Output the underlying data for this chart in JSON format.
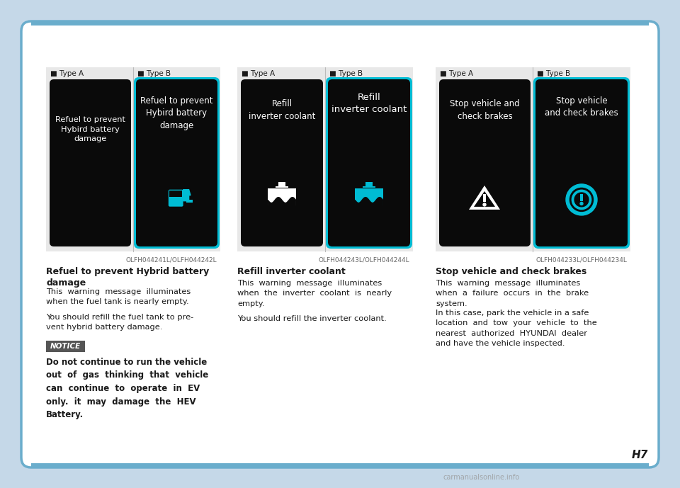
{
  "bg_color": "#c5d8e8",
  "page_bg": "#ffffff",
  "panel_bg": "#e8e8e8",
  "card_bg": "#0a0a0a",
  "card_border_cyan": "#00bcd4",
  "cyan_color": "#00bcd4",
  "white_color": "#ffffff",
  "gray_text": "#666666",
  "dark_text": "#1a1a1a",
  "notice_bg": "#cccccc",
  "notice_border": "#555555",
  "blue_line": "#6aadcc",
  "divider_color": "#bbbbbb",
  "page_label": "H7",
  "watermark": "carmanualsonline.info",
  "col1_heading": "Refuel to prevent Hybrid battery\ndamage",
  "col1_body1": "This  warning  message  illuminates\nwhen the fuel tank is nearly empty.",
  "col1_body2": "You should refill the fuel tank to pre-\nvent hybrid battery damage.",
  "col1_notice_title": "NOTICE",
  "col1_notice_body": "Do not continue to run the vehicle\nout  of  gas  thinking  that  vehicle\ncan  continue  to  operate  in  EV\nonly.  it  may  damage  the  HEV\nBattery.",
  "col2_heading": "Refill inverter coolant",
  "col2_body1": "This  warning  message  illuminates\nwhen  the  inverter  coolant  is  nearly\nempty.",
  "col2_body2": "You should refill the inverter coolant.",
  "col3_heading": "Stop vehicle and check brakes",
  "col3_body1": "This  warning  message  illuminates\nwhen  a  failure  occurs  in  the  brake\nsystem.",
  "col3_body2": "In this case, park the vehicle in a safe\nlocation  and  tow  your  vehicle  to  the\nnearest  authorized  HYUNDAI  dealer\nand have the vehicle inspected.",
  "ref1": "OLFH044241L/OLFH044242L",
  "ref2": "OLFH044243L/OLFH044244L",
  "ref3": "OLFH044233L/OLFH044234L",
  "typeA_label": "■ Type A",
  "typeB_label": "■ Type B",
  "card1a_text": "Refuel to prevent\nHybird battery\ndamage",
  "card1b_text": "Refuel to prevent\nHybird battery\ndamage",
  "card2a_text": "Refill\ninverter coolant",
  "card2b_text": "Refill\ninverter coolant",
  "card3a_text": "Stop vehicle and\ncheck brakes",
  "card3b_text": "Stop vehicle\nand check brakes"
}
